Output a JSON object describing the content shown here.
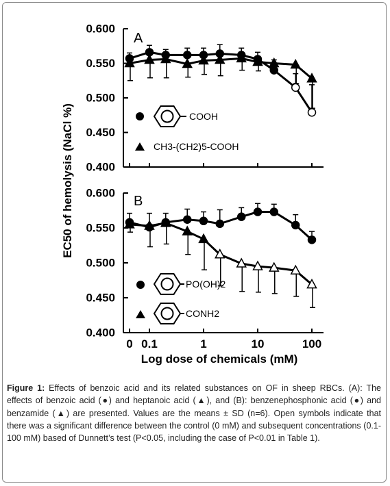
{
  "figure": {
    "y_axis_title": "EC50  of  hemolysis  (NaCl %)",
    "x_axis_title": "Log  dose  of  chemicals (mM)",
    "caption_label": "Figure 1:",
    "caption_text": " Effects of benzoic acid and its related substances on OF in sheep RBCs. (A): The effects of benzoic acid (●) and heptanoic acid (▲), and (B): benzenephosphonic acid (●) and benzamide (▲) are presented. Values are the means ± SD (n=6). Open symbols indicate that there was a significant difference between the control (0 mM) and subsequent concentrations (0.1-100 mM) based of Dunnett’s test (P<0.05, including the case of P<0.01 in Table 1)."
  },
  "chart_data": [
    {
      "type": "line",
      "panel_label": "A",
      "x_scale": "log (with control 0)",
      "categories": [
        "0",
        "0.1",
        "0.2",
        "0.5",
        "1",
        "2",
        "5",
        "10",
        "20",
        "50",
        "100"
      ],
      "xtick_labels": [
        "0",
        "0.1",
        "1",
        "10",
        "100"
      ],
      "ylim": [
        0.4,
        0.6
      ],
      "yticks": [
        "0.400",
        "0.450",
        "0.500",
        "0.550",
        "0.600"
      ],
      "series": [
        {
          "legend_label": "COOH",
          "legend_marker": "circle",
          "x": [
            0,
            0.1,
            0.2,
            0.5,
            1,
            2,
            5,
            10,
            20,
            50,
            100
          ],
          "values": [
            0.557,
            0.566,
            0.562,
            0.562,
            0.562,
            0.564,
            0.562,
            0.556,
            0.54,
            0.515,
            0.479
          ],
          "sd": [
            0.008,
            0.01,
            0.008,
            0.01,
            0.01,
            0.013,
            0.01,
            0.01,
            0.015,
            0.02,
            0.04
          ],
          "significant": [
            false,
            false,
            false,
            false,
            false,
            false,
            false,
            false,
            false,
            true,
            true
          ]
        },
        {
          "legend_label": "CH3-(CH2)5-COOH",
          "legend_marker": "triangle",
          "x": [
            0,
            0.1,
            0.2,
            0.5,
            1,
            2,
            5,
            10,
            20,
            50,
            100
          ],
          "values": [
            0.55,
            0.555,
            0.556,
            0.549,
            0.554,
            0.555,
            0.557,
            0.552,
            0.55,
            0.548,
            0.528
          ],
          "sd": [
            0.025,
            0.026,
            0.027,
            0.019,
            0.02,
            0.023,
            0.017,
            0.013,
            0.009,
            0.027,
            0.043
          ],
          "significant": [
            false,
            false,
            false,
            false,
            false,
            false,
            false,
            false,
            false,
            false,
            false
          ]
        }
      ]
    },
    {
      "type": "line",
      "panel_label": "B",
      "x_scale": "log (with control 0)",
      "categories": [
        "0",
        "0.1",
        "0.2",
        "0.5",
        "1",
        "2",
        "5",
        "10",
        "20",
        "50",
        "100"
      ],
      "xtick_labels": [
        "0",
        "0.1",
        "1",
        "10",
        "100"
      ],
      "ylim": [
        0.4,
        0.6
      ],
      "yticks": [
        "0.400",
        "0.450",
        "0.500",
        "0.550",
        "0.600"
      ],
      "series": [
        {
          "legend_label": "PO(OH)2",
          "legend_marker": "circle",
          "x": [
            0,
            0.1,
            0.2,
            0.5,
            1,
            2,
            5,
            10,
            20,
            50,
            100
          ],
          "values": [
            0.558,
            0.551,
            0.558,
            0.562,
            0.56,
            0.556,
            0.566,
            0.573,
            0.573,
            0.554,
            0.533
          ],
          "sd": [
            0.013,
            0.02,
            0.013,
            0.015,
            0.013,
            0.02,
            0.013,
            0.012,
            0.011,
            0.015,
            0.012
          ],
          "significant": [
            false,
            false,
            false,
            false,
            false,
            false,
            false,
            false,
            false,
            false,
            false
          ]
        },
        {
          "legend_label": "CONH2",
          "legend_marker": "triangle",
          "x": [
            0,
            0.1,
            0.2,
            0.5,
            1,
            2,
            5,
            10,
            20,
            50,
            100
          ],
          "values": [
            0.555,
            0.553,
            0.557,
            0.545,
            0.534,
            0.512,
            0.499,
            0.495,
            0.493,
            0.489,
            0.469
          ],
          "sd": [
            0.011,
            0.03,
            0.03,
            0.033,
            0.044,
            0.045,
            0.04,
            0.037,
            0.037,
            0.037,
            0.033
          ],
          "significant": [
            false,
            false,
            false,
            false,
            false,
            true,
            true,
            true,
            true,
            true,
            true
          ]
        }
      ]
    }
  ]
}
